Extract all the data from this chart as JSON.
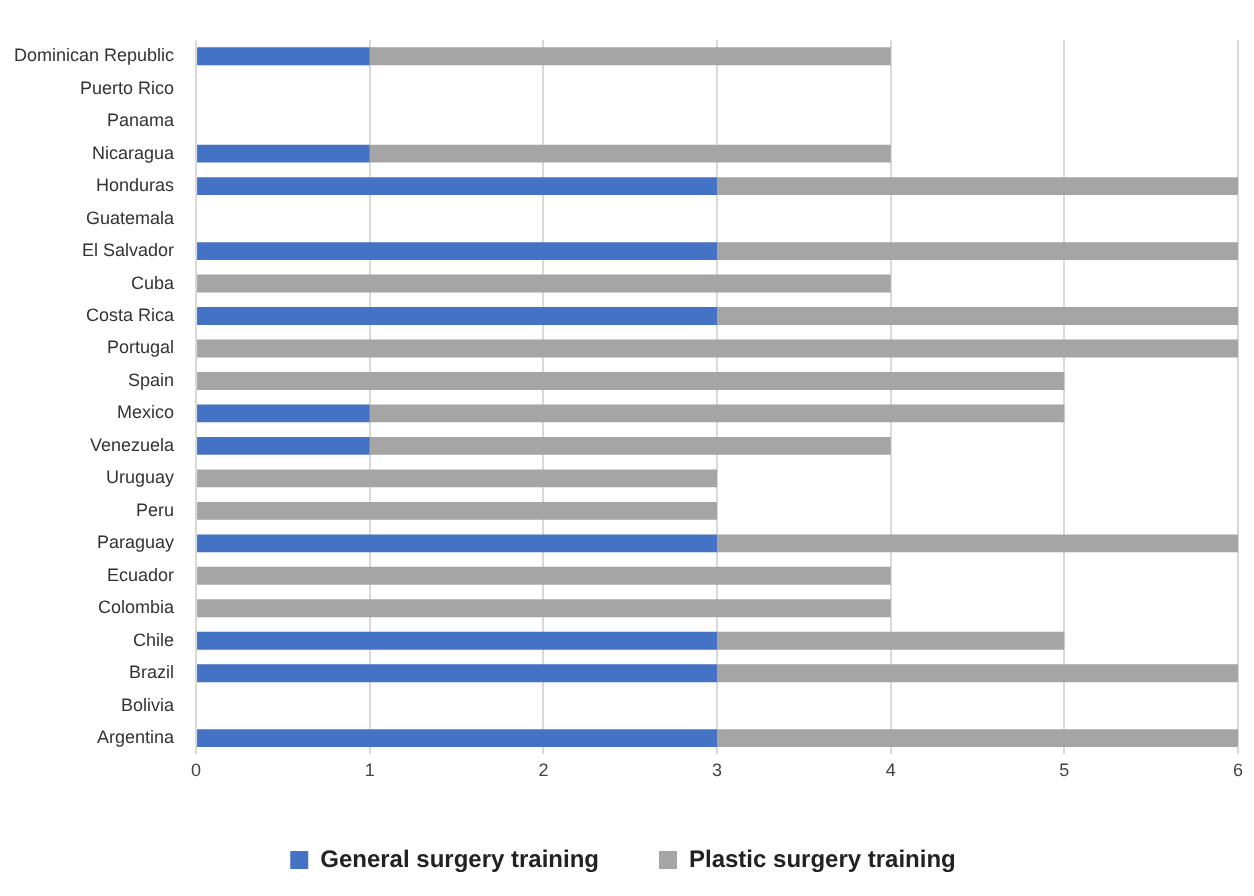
{
  "chart_data": {
    "type": "bar",
    "orientation": "horizontal",
    "stacked": true,
    "categories": [
      "Dominican Republic",
      "Puerto Rico",
      "Panama",
      "Nicaragua",
      "Honduras",
      "Guatemala",
      "El Salvador",
      "Cuba",
      "Costa Rica",
      "Portugal",
      "Spain",
      "Mexico",
      "Venezuela",
      "Uruguay",
      "Peru",
      "Paraguay",
      "Ecuador",
      "Colombia",
      "Chile",
      "Brazil",
      "Bolivia",
      "Argentina"
    ],
    "series": [
      {
        "name": "General surgery training",
        "color": "#4472c4",
        "values": [
          1,
          0,
          0,
          1,
          3,
          0,
          3,
          0,
          3,
          0,
          0,
          1,
          1,
          0,
          0,
          3,
          0,
          0,
          3,
          3,
          0,
          3
        ]
      },
      {
        "name": "Plastic surgery training",
        "color": "#a5a5a5",
        "values": [
          3,
          0,
          0,
          3,
          3,
          0,
          3,
          4,
          3,
          6,
          5,
          4,
          3,
          3,
          3,
          3,
          4,
          4,
          2,
          3,
          0,
          3
        ]
      }
    ],
    "xlim": [
      0,
      6
    ],
    "xticks": [
      0,
      1,
      2,
      3,
      4,
      5,
      6
    ],
    "grid": "x",
    "legend": "bottom"
  }
}
